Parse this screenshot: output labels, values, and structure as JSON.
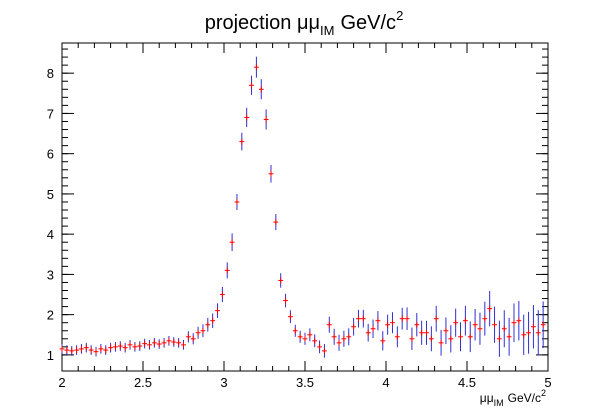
{
  "chart_data": {
    "type": "scatter",
    "title": "projection μμ_IM GeV/c²",
    "title_main": "projection μμ",
    "title_sub": "IM",
    "title_unit": "GeV/c",
    "title_sup": "2",
    "xlabel_main": "μμ",
    "xlabel_sub": "IM",
    "xlabel_unit": "GeV/c",
    "xlabel_sup": "2",
    "xlim": [
      2,
      5
    ],
    "ylim": [
      0.6,
      8.75
    ],
    "xticks": [
      2,
      2.5,
      3,
      3.5,
      4,
      4.5,
      5
    ],
    "xtick_labels": [
      "2",
      "2.5",
      "3",
      "3.5",
      "4",
      "4.5",
      "5"
    ],
    "yticks": [
      1,
      2,
      3,
      4,
      5,
      6,
      7,
      8
    ],
    "ytick_labels": [
      "1",
      "2",
      "3",
      "4",
      "5",
      "6",
      "7",
      "8"
    ],
    "grid": false,
    "marker_color": "#ff0000",
    "error_color": "#3030d0",
    "bin_halfwidth": 0.015,
    "x": [
      2.0,
      2.03,
      2.06,
      2.09,
      2.12,
      2.15,
      2.18,
      2.21,
      2.24,
      2.27,
      2.3,
      2.33,
      2.36,
      2.39,
      2.42,
      2.45,
      2.48,
      2.51,
      2.54,
      2.57,
      2.6,
      2.63,
      2.66,
      2.69,
      2.72,
      2.75,
      2.78,
      2.81,
      2.84,
      2.87,
      2.9,
      2.93,
      2.96,
      2.99,
      3.02,
      3.05,
      3.08,
      3.11,
      3.14,
      3.17,
      3.2,
      3.23,
      3.26,
      3.29,
      3.32,
      3.35,
      3.38,
      3.41,
      3.44,
      3.47,
      3.5,
      3.53,
      3.56,
      3.59,
      3.62,
      3.65,
      3.68,
      3.71,
      3.74,
      3.77,
      3.8,
      3.83,
      3.86,
      3.89,
      3.92,
      3.95,
      3.98,
      4.01,
      4.04,
      4.07,
      4.1,
      4.13,
      4.16,
      4.19,
      4.22,
      4.25,
      4.28,
      4.31,
      4.34,
      4.37,
      4.4,
      4.43,
      4.46,
      4.49,
      4.52,
      4.55,
      4.58,
      4.61,
      4.64,
      4.67,
      4.7,
      4.73,
      4.76,
      4.79,
      4.82,
      4.85,
      4.88,
      4.91,
      4.94,
      4.97
    ],
    "y": [
      1.15,
      1.12,
      1.1,
      1.12,
      1.15,
      1.18,
      1.12,
      1.08,
      1.15,
      1.12,
      1.18,
      1.2,
      1.22,
      1.18,
      1.25,
      1.2,
      1.22,
      1.28,
      1.25,
      1.3,
      1.27,
      1.3,
      1.35,
      1.32,
      1.3,
      1.25,
      1.45,
      1.4,
      1.55,
      1.6,
      1.75,
      1.85,
      2.1,
      2.5,
      3.1,
      3.8,
      4.8,
      6.3,
      6.9,
      7.7,
      8.15,
      7.6,
      6.85,
      5.5,
      4.3,
      2.85,
      2.35,
      1.95,
      1.6,
      1.45,
      1.4,
      1.5,
      1.35,
      1.2,
      1.1,
      1.75,
      1.45,
      1.3,
      1.4,
      1.45,
      1.7,
      1.9,
      1.9,
      1.55,
      1.65,
      1.85,
      1.35,
      1.75,
      1.8,
      1.45,
      1.9,
      1.9,
      1.4,
      1.75,
      1.55,
      1.55,
      1.4,
      1.9,
      1.3,
      1.6,
      1.4,
      1.8,
      1.45,
      1.85,
      1.45,
      1.75,
      1.65,
      1.9,
      2.15,
      1.75,
      1.4,
      1.65,
      1.45,
      1.8,
      1.85,
      1.5,
      1.55,
      1.7,
      1.55,
      1.75
    ],
    "yerr": [
      0.12,
      0.12,
      0.12,
      0.12,
      0.12,
      0.12,
      0.12,
      0.12,
      0.12,
      0.12,
      0.12,
      0.12,
      0.12,
      0.12,
      0.12,
      0.12,
      0.12,
      0.12,
      0.12,
      0.12,
      0.12,
      0.12,
      0.12,
      0.12,
      0.12,
      0.12,
      0.14,
      0.14,
      0.15,
      0.16,
      0.17,
      0.18,
      0.18,
      0.19,
      0.2,
      0.22,
      0.2,
      0.22,
      0.24,
      0.24,
      0.26,
      0.25,
      0.25,
      0.22,
      0.2,
      0.18,
      0.17,
      0.16,
      0.15,
      0.15,
      0.15,
      0.16,
      0.16,
      0.16,
      0.17,
      0.2,
      0.2,
      0.2,
      0.2,
      0.21,
      0.22,
      0.22,
      0.22,
      0.22,
      0.23,
      0.24,
      0.24,
      0.25,
      0.26,
      0.26,
      0.27,
      0.28,
      0.28,
      0.29,
      0.3,
      0.3,
      0.31,
      0.32,
      0.32,
      0.33,
      0.34,
      0.35,
      0.36,
      0.37,
      0.38,
      0.39,
      0.4,
      0.42,
      0.44,
      0.45,
      0.45,
      0.46,
      0.47,
      0.48,
      0.49,
      0.5,
      0.52,
      0.54,
      0.56,
      0.58
    ]
  }
}
